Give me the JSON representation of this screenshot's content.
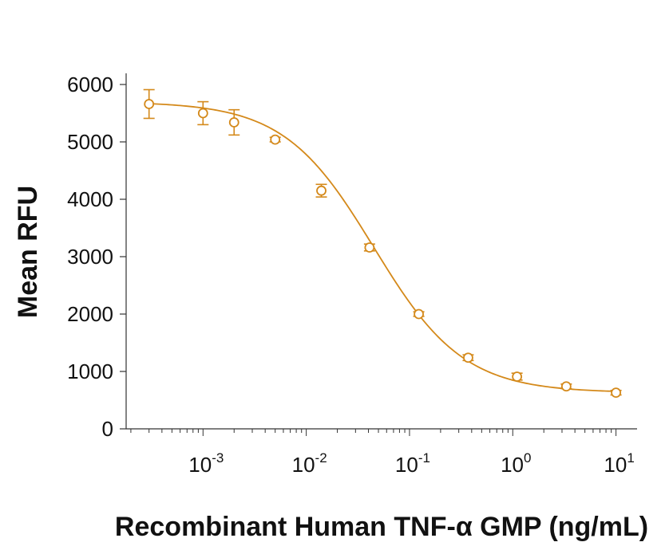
{
  "chart_data": {
    "type": "scatter",
    "title": "",
    "xlabel": "Recombinant Human TNF-α GMP (ng/mL)",
    "ylabel": "Mean RFU",
    "xscale": "log",
    "xlim": [
      0.00018,
      16
    ],
    "ylim": [
      0,
      6000
    ],
    "yticks": [
      0,
      1000,
      2000,
      3000,
      4000,
      5000,
      6000
    ],
    "xticks": [
      {
        "value": 0.001,
        "base": "10",
        "exp": "-3"
      },
      {
        "value": 0.01,
        "base": "10",
        "exp": "-2"
      },
      {
        "value": 0.1,
        "base": "10",
        "exp": "-1"
      },
      {
        "value": 1,
        "base": "10",
        "exp": "0"
      },
      {
        "value": 10,
        "base": "10",
        "exp": "1"
      }
    ],
    "color": "#D4891A",
    "series": [
      {
        "name": "TNF-α GMP",
        "x": [
          0.0003,
          0.001,
          0.002,
          0.005,
          0.014,
          0.041,
          0.123,
          0.37,
          1.1,
          3.3,
          10
        ],
        "y": [
          5660,
          5500,
          5340,
          5040,
          4150,
          3160,
          2000,
          1240,
          910,
          740,
          630
        ],
        "err": [
          250,
          200,
          220,
          40,
          110,
          60,
          40,
          50,
          60,
          40,
          40
        ]
      }
    ],
    "fit": {
      "model": "4PL",
      "top": 5700,
      "bottom": 630,
      "ec50": 0.045,
      "hill": 1.0
    },
    "grid": false,
    "legend": "none"
  }
}
